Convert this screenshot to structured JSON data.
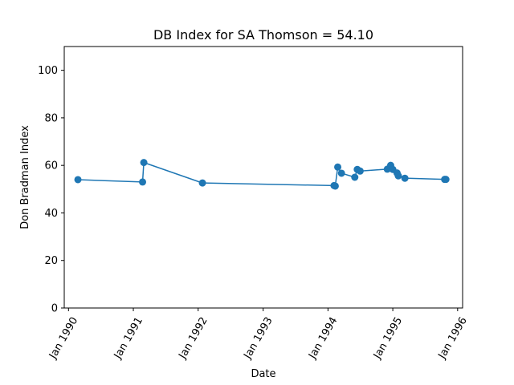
{
  "chart_data": {
    "type": "line",
    "title": "DB Index for SA Thomson = 54.10",
    "xlabel": "Date",
    "ylabel": "Don Bradman Index",
    "ylim": [
      0,
      110
    ],
    "yticks": [
      0,
      20,
      40,
      60,
      80,
      100
    ],
    "xlim": [
      "1989-12-08",
      "1996-01-29"
    ],
    "xticks": [
      {
        "date": "1990-01-01",
        "label": "Jan 1990"
      },
      {
        "date": "1991-01-01",
        "label": "Jan 1991"
      },
      {
        "date": "1992-01-01",
        "label": "Jan 1992"
      },
      {
        "date": "1993-01-01",
        "label": "Jan 1993"
      },
      {
        "date": "1994-01-01",
        "label": "Jan 1994"
      },
      {
        "date": "1995-01-01",
        "label": "Jan 1995"
      },
      {
        "date": "1996-01-01",
        "label": "Jan 1996"
      }
    ],
    "grid": false,
    "legend": "none",
    "color": "#1f77b4",
    "series": [
      {
        "points": [
          {
            "x": "1990-02-23",
            "y": 54.0
          },
          {
            "x": "1991-02-22",
            "y": 53.0
          },
          {
            "x": "1991-03-01",
            "y": 61.2
          },
          {
            "x": "1992-01-25",
            "y": 52.6
          },
          {
            "x": "1994-02-04",
            "y": 51.5
          },
          {
            "x": "1994-02-11",
            "y": 51.3
          },
          {
            "x": "1994-02-25",
            "y": 59.3
          },
          {
            "x": "1994-03-18",
            "y": 56.7
          },
          {
            "x": "1994-06-01",
            "y": 55.0
          },
          {
            "x": "1994-06-15",
            "y": 58.3
          },
          {
            "x": "1994-07-01",
            "y": 57.6
          },
          {
            "x": "1994-12-01",
            "y": 58.4
          },
          {
            "x": "1994-12-20",
            "y": 60.0
          },
          {
            "x": "1995-01-01",
            "y": 58.3
          },
          {
            "x": "1995-01-25",
            "y": 56.8
          },
          {
            "x": "1995-02-01",
            "y": 55.6
          },
          {
            "x": "1995-03-10",
            "y": 54.6
          },
          {
            "x": "1995-10-20",
            "y": 54.1
          },
          {
            "x": "1995-10-27",
            "y": 54.1
          }
        ]
      }
    ]
  }
}
